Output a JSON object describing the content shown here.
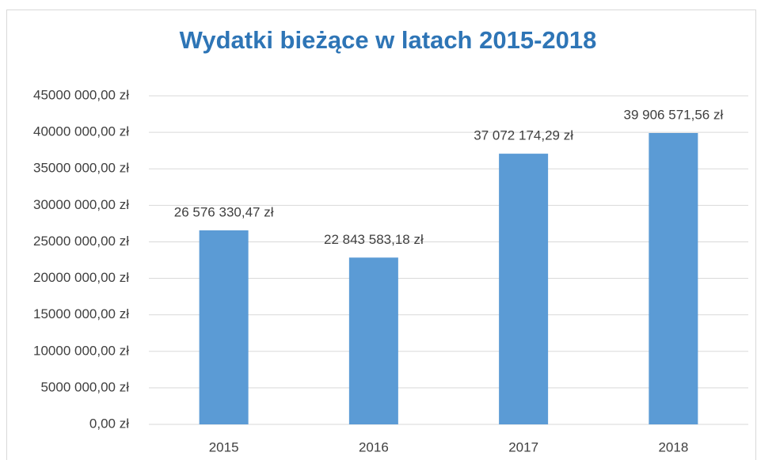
{
  "chart_data": {
    "type": "bar",
    "title": "Wydatki bieżące w latach 2015-2018",
    "categories": [
      "2015",
      "2016",
      "2017",
      "2018"
    ],
    "values": [
      26576330.47,
      22843583.18,
      37072174.29,
      39906571.56
    ],
    "value_labels": [
      "26 576 330,47 zł",
      "22 843 583,18 zł",
      "37 072 174,29 zł",
      "39 906 571,56 zł"
    ],
    "color": "#5b9bd5",
    "ylim": [
      0,
      45000000
    ],
    "yticks": [
      {
        "value": 0,
        "label": "0,00 zł"
      },
      {
        "value": 5000000,
        "label": "5000 000,00 zł"
      },
      {
        "value": 10000000,
        "label": "10000 000,00 zł"
      },
      {
        "value": 15000000,
        "label": "15000 000,00 zł"
      },
      {
        "value": 20000000,
        "label": "20000 000,00 zł"
      },
      {
        "value": 25000000,
        "label": "25000 000,00 zł"
      },
      {
        "value": 30000000,
        "label": "30000 000,00 zł"
      },
      {
        "value": 35000000,
        "label": "35000 000,00 zł"
      },
      {
        "value": 40000000,
        "label": "40000 000,00 zł"
      },
      {
        "value": 45000000,
        "label": "45000 000,00 zł"
      }
    ],
    "grid": true
  }
}
